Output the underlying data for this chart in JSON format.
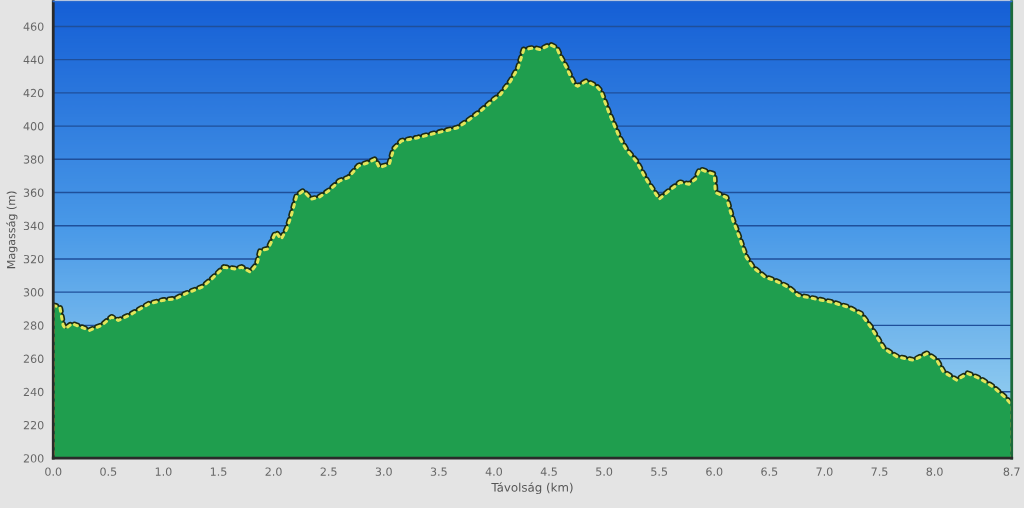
{
  "chart_data": {
    "type": "area",
    "xlabel": "Távolság (km)",
    "ylabel": "Magasság (m)",
    "xlim": [
      0,
      8.7
    ],
    "xticks": [
      {
        "value": 0,
        "label": "0.0"
      },
      0.5,
      {
        "value": 1,
        "label": "1.0"
      },
      1.5,
      {
        "value": 2,
        "label": "2.0"
      },
      2.5,
      {
        "value": 3,
        "label": "3.0"
      },
      3.5,
      {
        "value": 4,
        "label": "4.0"
      },
      4.5,
      {
        "value": 5,
        "label": "5.0"
      },
      5.5,
      {
        "value": 6,
        "label": "6.0"
      },
      6.5,
      {
        "value": 7,
        "label": "7.0"
      },
      7.5,
      {
        "value": 8,
        "label": "8.0"
      },
      8.7
    ],
    "ylim": [
      200,
      475
    ],
    "yticks": [
      200,
      220,
      240,
      260,
      280,
      300,
      320,
      340,
      360,
      380,
      400,
      420,
      440,
      460
    ],
    "grid": "y",
    "line_style": "dotted",
    "legend": false,
    "series": [
      {
        "color": "#1f9e4e",
        "x": [
          0.0,
          0.06,
          0.09,
          0.11,
          0.17,
          0.21,
          0.33,
          0.44,
          0.53,
          0.59,
          0.69,
          0.87,
          0.99,
          1.11,
          1.2,
          1.35,
          1.44,
          1.55,
          1.65,
          1.71,
          1.79,
          1.85,
          1.88,
          1.95,
          2.02,
          2.07,
          2.12,
          2.16,
          2.21,
          2.27,
          2.34,
          2.41,
          2.5,
          2.6,
          2.68,
          2.77,
          2.86,
          2.92,
          2.96,
          3.05,
          3.09,
          3.16,
          3.31,
          3.55,
          3.67,
          3.76,
          3.88,
          4.0,
          4.06,
          4.15,
          4.22,
          4.27,
          4.36,
          4.42,
          4.51,
          4.57,
          4.61,
          4.66,
          4.73,
          4.76,
          4.84,
          4.93,
          4.97,
          5.05,
          5.14,
          5.2,
          5.29,
          5.39,
          5.5,
          5.59,
          5.69,
          5.77,
          5.83,
          5.87,
          5.95,
          6.0,
          6.01,
          6.11,
          6.17,
          6.2,
          6.29,
          6.35,
          6.46,
          6.55,
          6.67,
          6.76,
          6.91,
          7.06,
          7.21,
          7.33,
          7.42,
          7.54,
          7.66,
          7.81,
          7.93,
          8.02,
          8.08,
          8.2,
          8.3,
          8.41,
          8.53,
          8.65,
          8.7
        ],
        "values": [
          292,
          291,
          280,
          278,
          281,
          280,
          277,
          280,
          285,
          283,
          286,
          293,
          295,
          296,
          299,
          303,
          308,
          315,
          314,
          315,
          312,
          317,
          325,
          326,
          336,
          332,
          338,
          346,
          358,
          361,
          356,
          357,
          361,
          367,
          369,
          376,
          378,
          380,
          375,
          377,
          386,
          391,
          393,
          397,
          399,
          403,
          409,
          416,
          419,
          427,
          435,
          446,
          447,
          446,
          449,
          447,
          441,
          435,
          425,
          424,
          427,
          424,
          421,
          407,
          393,
          386,
          379,
          367,
          356,
          361,
          366,
          365,
          368,
          374,
          372,
          371,
          360,
          357,
          343,
          338,
          321,
          315,
          309,
          307,
          303,
          298,
          296,
          294,
          291,
          287,
          279,
          266,
          261,
          259,
          263,
          259,
          252,
          247,
          251,
          248,
          243,
          236,
          232
        ]
      }
    ]
  }
}
